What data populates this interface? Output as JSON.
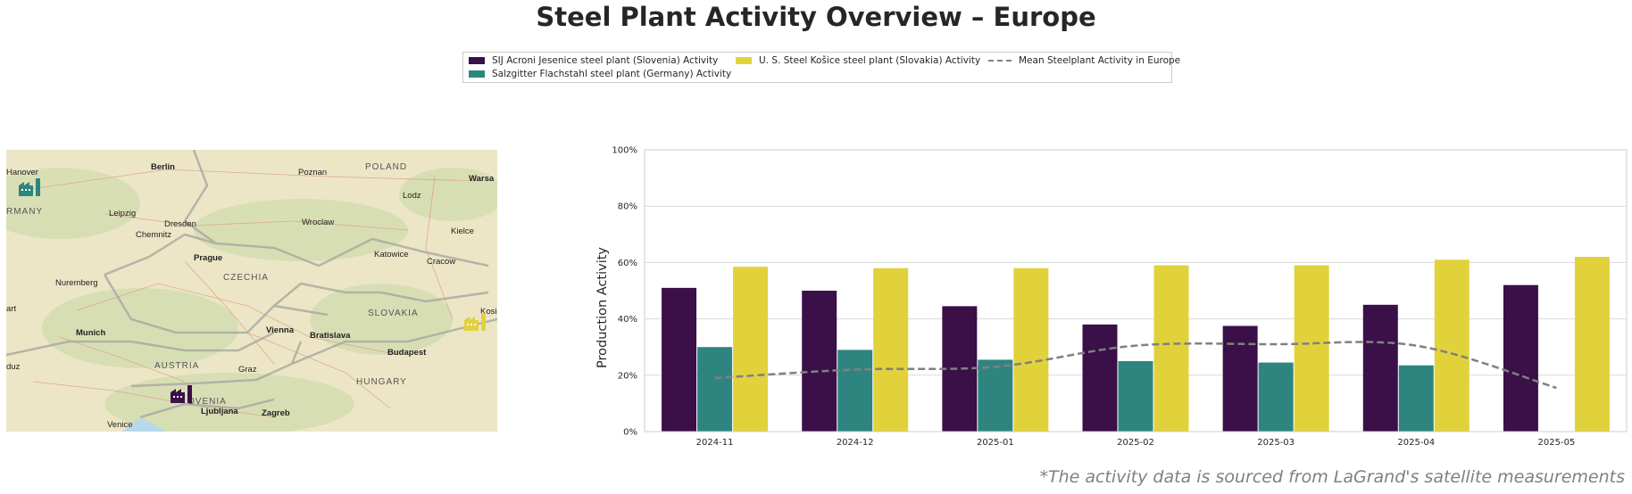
{
  "title": "Steel Plant Activity Overview – Europe",
  "footnote": "*The activity data is sourced from LaGrand's satellite measurements",
  "colors": {
    "acroni": "#3b0f48",
    "salzgitter": "#2e8580",
    "kosice": "#e1d23c",
    "mean": "#808080",
    "grid": "#d9d9d9"
  },
  "map": {
    "cities": [
      "Berlin",
      "Poznan",
      "POLAND",
      "Warsa",
      "Hanover",
      "Lodz",
      "RMANY",
      "Leipzig",
      "Dresden",
      "Wroclaw",
      "Chemnitz",
      "Kielce",
      "Prague",
      "Katowice",
      "Cracow",
      "CZECHIA",
      "Nuremberg",
      "SLOVAKIA",
      "Kosi",
      "art",
      "Munich",
      "Vienna",
      "Bratislava",
      "Budapest",
      "AUSTRIA",
      "Graz",
      "HUNGARY",
      "duz",
      "OVENIA",
      "Ljubljana",
      "Zagreb",
      "Venice"
    ],
    "markers": [
      {
        "name": "salzgitter-marker",
        "color": "#2e8580"
      },
      {
        "name": "kosice-marker",
        "color": "#e1d23c"
      },
      {
        "name": "acroni-marker",
        "color": "#3b0f48"
      }
    ]
  },
  "chart_data": {
    "type": "bar",
    "categories": [
      "2024-11",
      "2024-12",
      "2025-01",
      "2025-02",
      "2025-03",
      "2025-04",
      "2025-05"
    ],
    "ylabel": "Production Activity",
    "xlabel": "",
    "ylim": [
      0,
      100
    ],
    "yticks": [
      "0%",
      "20%",
      "40%",
      "60%",
      "80%",
      "100%"
    ],
    "ytick_values": [
      0,
      20,
      40,
      60,
      80,
      100
    ],
    "grid": "horizontal",
    "legend_position": "top-center",
    "series": [
      {
        "name": "SIJ Acroni Jesenice steel plant (Slovenia) Activity",
        "type": "bar",
        "color": "#3b0f48",
        "values": [
          51,
          50,
          44.5,
          38,
          37.5,
          45,
          52
        ]
      },
      {
        "name": "Salzgitter Flachstahl steel plant (Germany) Activity",
        "type": "bar",
        "color": "#2e8580",
        "values": [
          30,
          29,
          25.5,
          25,
          24.5,
          23.5,
          null
        ]
      },
      {
        "name": "U. S. Steel Košice steel plant (Slovakia) Activity",
        "type": "bar",
        "color": "#e1d23c",
        "values": [
          58.5,
          58,
          58,
          59,
          59,
          61,
          62
        ]
      },
      {
        "name": "Mean Steelplant Activity in Europe",
        "type": "line",
        "style": "dashed",
        "color": "#808080",
        "values": [
          19,
          22,
          23,
          30.5,
          31,
          30.5,
          15.5
        ]
      }
    ]
  }
}
